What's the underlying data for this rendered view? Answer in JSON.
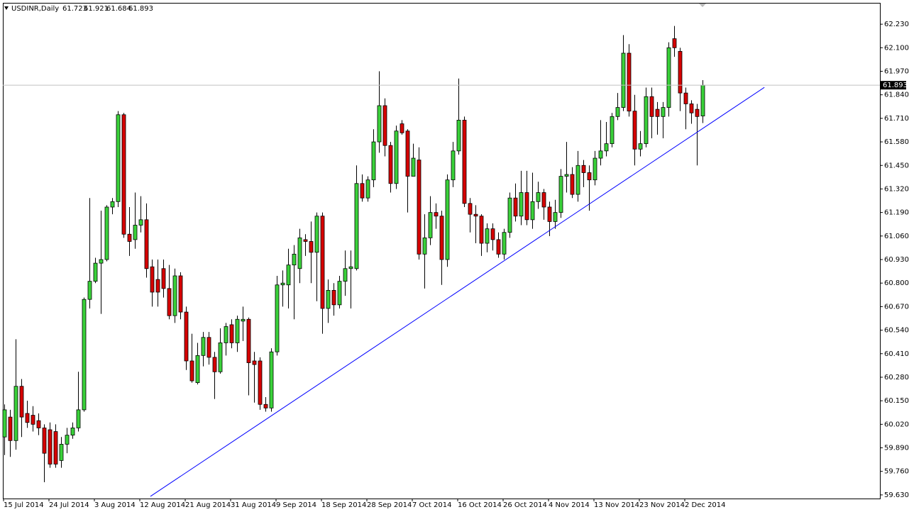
{
  "chart_data": {
    "type": "candlestick",
    "header": "USDINR,Daily",
    "categories": [
      "15 Jul 2014",
      null,
      null,
      null,
      null,
      null,
      null,
      null,
      "24 Jul 2014",
      null,
      null,
      null,
      null,
      null,
      null,
      null,
      "3 Aug 2014",
      null,
      null,
      null,
      null,
      null,
      null,
      null,
      "12 Aug 2014",
      null,
      null,
      null,
      null,
      null,
      null,
      null,
      "21 Aug 2014",
      null,
      null,
      null,
      null,
      null,
      null,
      null,
      "31 Aug 2014",
      null,
      null,
      null,
      null,
      null,
      null,
      null,
      "9 Sep 2014",
      null,
      null,
      null,
      null,
      null,
      null,
      null,
      "18 Sep 2014",
      null,
      null,
      null,
      null,
      null,
      null,
      null,
      "28 Sep 2014",
      null,
      null,
      null,
      null,
      null,
      null,
      null,
      "7 Oct 2014",
      null,
      null,
      null,
      null,
      null,
      null,
      null,
      "16 Oct 2014",
      null,
      null,
      null,
      null,
      null,
      null,
      null,
      "26 Oct 2014",
      null,
      null,
      null,
      null,
      null,
      null,
      null,
      "4 Nov 2014",
      null,
      null,
      null,
      null,
      null,
      null,
      null,
      "13 Nov 2014",
      null,
      null,
      null,
      null,
      null,
      null,
      null,
      "23 Nov 2014",
      null,
      null,
      null,
      null,
      null,
      null,
      null,
      "2 Dec 2014",
      null,
      null,
      null
    ],
    "series": {
      "open": [
        59.95,
        60.06,
        59.93,
        60.23,
        60.08,
        60.07,
        60.04,
        60.0,
        59.99,
        59.98,
        59.82,
        59.91,
        59.96,
        60.0,
        60.1,
        60.71,
        60.81,
        60.91,
        60.93,
        61.22,
        61.25,
        61.73,
        61.07,
        61.04,
        61.12,
        61.15,
        60.89,
        60.82,
        60.88,
        60.77,
        60.62,
        60.84,
        60.64,
        60.37,
        60.25,
        60.4,
        60.5,
        60.39,
        60.31,
        60.47,
        60.57,
        60.47,
        60.59,
        60.6,
        60.37,
        60.37,
        60.13,
        60.11,
        60.42,
        60.79,
        60.79,
        60.9,
        60.88,
        61.04,
        61.03,
        60.97,
        61.17,
        60.66,
        60.76,
        60.68,
        60.81,
        60.88,
        60.88,
        61.35,
        61.27,
        61.37,
        61.58,
        61.78,
        61.56,
        61.35,
        61.68,
        61.64,
        61.39,
        61.48,
        60.96,
        61.05,
        61.19,
        61.17,
        60.93,
        61.37,
        61.53,
        61.7,
        61.24,
        61.18,
        61.17,
        61.02,
        61.1,
        61.04,
        60.96,
        61.08,
        61.27,
        61.17,
        61.3,
        61.15,
        61.25,
        61.3,
        61.22,
        61.14,
        61.19,
        61.39,
        61.4,
        61.29,
        61.45,
        61.41,
        61.37,
        61.49,
        61.53,
        61.57,
        61.72,
        61.77,
        62.07,
        61.75,
        61.54,
        61.57,
        61.83,
        61.76,
        61.72,
        61.77,
        62.15,
        62.08,
        61.85,
        61.79,
        61.76,
        61.723
      ],
      "high": [
        60.13,
        60.1,
        60.49,
        60.27,
        60.15,
        60.12,
        60.08,
        60.02,
        60.03,
        60.02,
        59.95,
        60.0,
        60.03,
        60.31,
        60.72,
        61.27,
        60.94,
        61.2,
        61.23,
        61.27,
        61.75,
        61.74,
        61.22,
        61.3,
        61.28,
        61.24,
        60.93,
        60.93,
        60.93,
        60.9,
        60.88,
        60.86,
        60.67,
        60.52,
        60.47,
        60.53,
        60.53,
        60.42,
        60.55,
        60.58,
        60.6,
        60.62,
        60.67,
        60.61,
        60.42,
        60.39,
        60.17,
        60.44,
        60.84,
        60.87,
        60.99,
        61.01,
        61.1,
        61.07,
        61.14,
        61.19,
        61.19,
        60.82,
        60.8,
        60.84,
        60.98,
        60.98,
        61.45,
        61.4,
        61.39,
        61.65,
        61.97,
        61.82,
        61.58,
        61.67,
        61.7,
        61.65,
        61.57,
        61.55,
        61.18,
        61.28,
        61.24,
        61.2,
        61.4,
        61.58,
        61.93,
        61.72,
        61.27,
        61.23,
        61.18,
        61.13,
        61.13,
        61.08,
        61.1,
        61.3,
        61.35,
        61.42,
        61.42,
        61.41,
        61.36,
        61.32,
        61.25,
        61.26,
        61.43,
        61.58,
        61.44,
        61.53,
        61.48,
        61.45,
        61.53,
        61.7,
        61.69,
        61.74,
        61.85,
        62.17,
        62.12,
        61.84,
        61.64,
        61.88,
        61.88,
        61.8,
        61.8,
        62.13,
        62.22,
        62.1,
        61.88,
        61.81,
        61.79,
        61.921
      ],
      "low": [
        59.85,
        59.84,
        59.88,
        59.95,
        60.0,
        59.98,
        59.96,
        59.7,
        59.78,
        59.78,
        59.78,
        59.86,
        59.94,
        59.98,
        60.09,
        60.66,
        60.8,
        60.63,
        60.92,
        61.18,
        61.22,
        61.05,
        60.95,
        60.99,
        61.08,
        60.83,
        60.67,
        60.67,
        60.72,
        60.6,
        60.58,
        60.6,
        60.32,
        60.25,
        60.24,
        60.34,
        60.35,
        60.16,
        60.3,
        60.4,
        60.44,
        60.42,
        60.48,
        60.18,
        60.14,
        60.1,
        60.09,
        60.09,
        60.4,
        60.67,
        60.66,
        60.6,
        60.8,
        60.95,
        60.8,
        60.7,
        60.52,
        60.58,
        60.62,
        60.66,
        60.73,
        60.66,
        60.87,
        61.25,
        61.25,
        61.33,
        61.52,
        61.5,
        61.3,
        61.32,
        61.62,
        61.19,
        61.39,
        60.93,
        60.77,
        61.01,
        61.1,
        60.79,
        60.89,
        61.33,
        61.51,
        61.22,
        61.08,
        61.02,
        60.95,
        60.97,
        60.98,
        60.94,
        60.93,
        61.05,
        61.14,
        61.12,
        61.12,
        61.1,
        61.21,
        61.15,
        61.06,
        61.1,
        61.16,
        61.3,
        61.27,
        61.25,
        61.33,
        61.2,
        61.34,
        61.45,
        61.5,
        61.55,
        61.7,
        61.75,
        61.72,
        61.45,
        61.5,
        61.55,
        61.6,
        61.62,
        61.6,
        61.72,
        62.05,
        61.75,
        61.65,
        61.68,
        61.45,
        61.684
      ],
      "close": [
        60.1,
        59.93,
        60.23,
        60.06,
        60.03,
        60.02,
        60.0,
        59.86,
        59.8,
        59.8,
        59.91,
        59.96,
        60.0,
        60.1,
        60.71,
        60.81,
        60.91,
        60.93,
        61.22,
        61.25,
        61.73,
        61.07,
        61.03,
        61.12,
        61.15,
        60.88,
        60.75,
        60.75,
        60.77,
        60.62,
        60.84,
        60.64,
        60.37,
        60.26,
        60.4,
        60.5,
        60.39,
        60.31,
        60.47,
        60.56,
        60.47,
        60.6,
        60.6,
        60.36,
        60.35,
        60.13,
        60.11,
        60.42,
        60.79,
        60.8,
        60.9,
        60.96,
        61.05,
        61.03,
        60.97,
        61.17,
        60.66,
        60.76,
        60.68,
        60.81,
        60.88,
        60.89,
        61.35,
        61.27,
        61.37,
        61.58,
        61.78,
        61.56,
        61.35,
        61.64,
        61.63,
        61.39,
        61.49,
        60.96,
        61.05,
        61.19,
        61.17,
        60.93,
        61.37,
        61.53,
        61.7,
        61.24,
        61.18,
        61.17,
        61.02,
        61.1,
        61.04,
        60.96,
        61.08,
        61.27,
        61.17,
        61.3,
        61.15,
        61.25,
        61.3,
        61.22,
        61.14,
        61.19,
        61.39,
        61.4,
        61.29,
        61.45,
        61.41,
        61.37,
        61.49,
        61.53,
        61.57,
        61.72,
        61.77,
        62.07,
        61.75,
        61.54,
        61.57,
        61.83,
        61.72,
        61.72,
        61.77,
        62.1,
        62.1,
        61.85,
        61.79,
        61.74,
        61.72,
        61.893
      ]
    },
    "up_color": "#3ad13a",
    "down_color": "#d60000",
    "trendline": {
      "color": "#0000ff",
      "x": [
        25.75,
        133.9
      ],
      "y": [
        59.622,
        61.881
      ]
    },
    "ylim": [
      59.61,
      62.348
    ],
    "yticks": [
      {
        "value": 59.63,
        "label": "59.630"
      },
      {
        "value": 59.76,
        "label": "59.760"
      },
      {
        "value": 59.89,
        "label": "59.890"
      },
      {
        "value": 60.02,
        "label": "60.020"
      },
      {
        "value": 60.15,
        "label": "60.150"
      },
      {
        "value": 60.28,
        "label": "60.280"
      },
      {
        "value": 60.41,
        "label": "60.410"
      },
      {
        "value": 60.54,
        "label": "60.540"
      },
      {
        "value": 60.67,
        "label": "60.670"
      },
      {
        "value": 60.8,
        "label": "60.800"
      },
      {
        "value": 60.93,
        "label": "60.930"
      },
      {
        "value": 61.06,
        "label": "61.060"
      },
      {
        "value": 61.19,
        "label": "61.190"
      },
      {
        "value": 61.32,
        "label": "61.320"
      },
      {
        "value": 61.45,
        "label": "61.450"
      },
      {
        "value": 61.58,
        "label": "61.580"
      },
      {
        "value": 61.71,
        "label": "61.710"
      },
      {
        "value": 61.84,
        "label": "61.840"
      },
      {
        "value": 61.97,
        "label": "61.970"
      },
      {
        "value": 62.1,
        "label": "62.100"
      },
      {
        "value": 62.23,
        "label": "62.230"
      }
    ]
  }
}
